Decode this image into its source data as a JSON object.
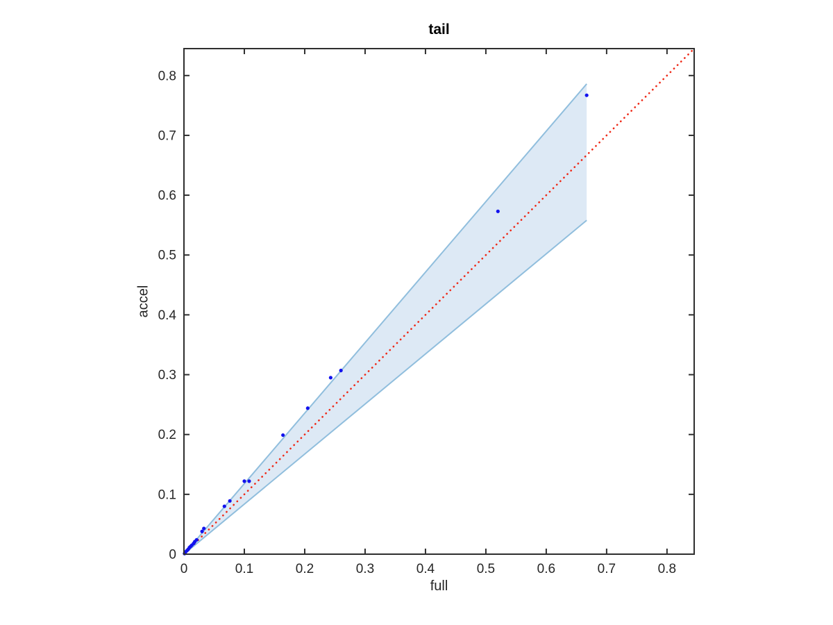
{
  "figure": {
    "background": "#ffffff"
  },
  "chart_data": {
    "type": "scatter",
    "title": "tail",
    "xlabel": "full",
    "ylabel": "accel",
    "xlim": [
      0,
      0.845
    ],
    "ylim": [
      0,
      0.845
    ],
    "xticks": [
      0,
      0.1,
      0.2,
      0.3,
      0.4,
      0.5,
      0.6,
      0.7,
      0.8
    ],
    "yticks": [
      0,
      0.1,
      0.2,
      0.3,
      0.4,
      0.5,
      0.6,
      0.7,
      0.8
    ],
    "xtick_labels": [
      "0",
      "0.1",
      "0.2",
      "0.3",
      "0.4",
      "0.5",
      "0.6",
      "0.7",
      "0.8"
    ],
    "ytick_labels": [
      "0",
      "0.1",
      "0.2",
      "0.3",
      "0.4",
      "0.5",
      "0.6",
      "0.7",
      "0.8"
    ],
    "grid": false,
    "legend": false,
    "box": true,
    "tick_direction": "in",
    "series": [
      {
        "name": "confidence-band",
        "type": "band",
        "fill_color": "#dde9f5",
        "edge_color": "#90bedd",
        "vertices": [
          [
            0,
            0
          ],
          [
            0.667,
            0.786
          ],
          [
            0.667,
            0.558
          ]
        ],
        "upper_slope": 1.18,
        "lower_slope": 0.84
      },
      {
        "name": "identity-line",
        "type": "line",
        "style": "dotted",
        "color": "#ee2a18",
        "points": [
          [
            0,
            0
          ],
          [
            0.845,
            0.845
          ]
        ]
      },
      {
        "name": "accel-vs-full-points",
        "type": "scatter",
        "marker": "dot",
        "color": "#1212ee",
        "points": [
          [
            0.001,
            0.001
          ],
          [
            0.003,
            0.004
          ],
          [
            0.005,
            0.006
          ],
          [
            0.007,
            0.008
          ],
          [
            0.009,
            0.011
          ],
          [
            0.011,
            0.013
          ],
          [
            0.013,
            0.015
          ],
          [
            0.016,
            0.018
          ],
          [
            0.018,
            0.021
          ],
          [
            0.021,
            0.024
          ],
          [
            0.03,
            0.038
          ],
          [
            0.033,
            0.043
          ],
          [
            0.067,
            0.08
          ],
          [
            0.076,
            0.089
          ],
          [
            0.1,
            0.122
          ],
          [
            0.108,
            0.122
          ],
          [
            0.164,
            0.199
          ],
          [
            0.205,
            0.244
          ],
          [
            0.243,
            0.295
          ],
          [
            0.26,
            0.307
          ],
          [
            0.52,
            0.573
          ],
          [
            0.667,
            0.767
          ]
        ]
      }
    ],
    "colors": {
      "axis": "#2e2e2e",
      "tick_label": "#262626",
      "background": "#ffffff"
    }
  }
}
